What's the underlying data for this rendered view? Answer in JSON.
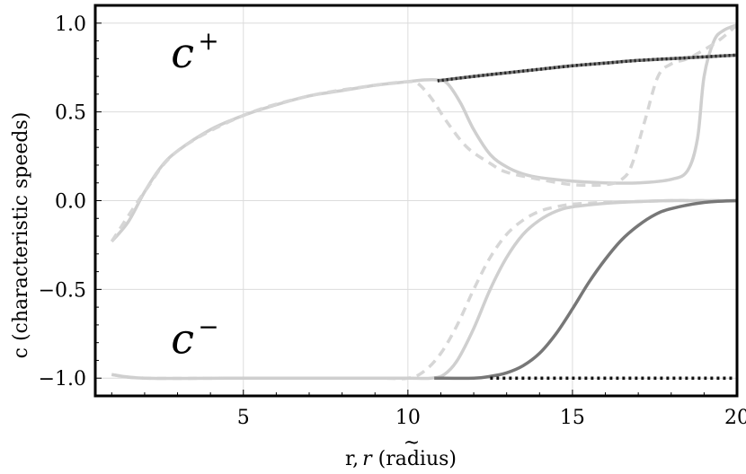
{
  "chart_data": {
    "type": "line",
    "title": "",
    "xlabel_main": "r,",
    "xlabel_var": "r",
    "xlabel_tilde": "~",
    "xlabel_unit": " (radius)",
    "ylabel": "c (characteristic speeds)",
    "xlim": [
      0.5,
      20
    ],
    "ylim": [
      -1.1,
      1.1
    ],
    "xticks": [
      5,
      10,
      15,
      20
    ],
    "xtick_labels": [
      "5",
      "10",
      "15",
      "20"
    ],
    "yticks": [
      1.0,
      0.5,
      0.0,
      -0.5,
      -1.0
    ],
    "ytick_labels": [
      "1.0",
      "0.5",
      "0.0",
      "−0.5",
      "−1.0"
    ],
    "grid": true,
    "annotations": [
      {
        "text": "c",
        "sup": "+",
        "x": 2.8,
        "y": 0.75
      },
      {
        "text": "c",
        "sup": "−",
        "x": 2.8,
        "y": -0.86
      }
    ],
    "series": [
      {
        "color": "#cfcfcf",
        "dash": "",
        "x": [
          1,
          1.5,
          2,
          2.5,
          3,
          4,
          5,
          6,
          7,
          8,
          9,
          10,
          10.5,
          10.9,
          11.2,
          11.6,
          12,
          12.5,
          13,
          13.5,
          14,
          15,
          16,
          17,
          18,
          18.5,
          18.8,
          19,
          19.3,
          19.6,
          20
        ],
        "y": [
          -0.23,
          -0.12,
          0.05,
          0.19,
          0.28,
          0.4,
          0.48,
          0.54,
          0.59,
          0.62,
          0.65,
          0.67,
          0.68,
          0.68,
          0.66,
          0.55,
          0.4,
          0.26,
          0.19,
          0.15,
          0.13,
          0.11,
          0.1,
          0.1,
          0.12,
          0.17,
          0.35,
          0.7,
          0.9,
          0.96,
          0.99
        ]
      },
      {
        "color": "#d6d6d6",
        "dash": "10,7",
        "x": [
          1,
          2,
          3,
          5,
          7,
          9,
          10,
          10.3,
          10.7,
          11.2,
          11.8,
          12.5,
          13,
          14,
          15,
          16,
          16.5,
          16.8,
          17.2,
          17.6,
          18,
          18.5,
          19,
          19.5,
          20
        ],
        "y": [
          -0.23,
          0.05,
          0.28,
          0.48,
          0.59,
          0.65,
          0.67,
          0.66,
          0.58,
          0.44,
          0.3,
          0.21,
          0.16,
          0.12,
          0.09,
          0.09,
          0.12,
          0.2,
          0.45,
          0.7,
          0.77,
          0.8,
          0.85,
          0.91,
          0.99
        ]
      },
      {
        "color": "#777777",
        "dash": "",
        "x": [
          10.9,
          12,
          13,
          14,
          15,
          16,
          17,
          18,
          19,
          20
        ],
        "y": [
          0.675,
          0.7,
          0.72,
          0.74,
          0.76,
          0.775,
          0.79,
          0.8,
          0.81,
          0.82
        ]
      },
      {
        "color": "#222222",
        "dash": "2,3",
        "x": [
          10.9,
          12,
          13,
          14,
          15,
          16,
          17,
          18,
          19,
          20
        ],
        "y": [
          0.675,
          0.7,
          0.72,
          0.74,
          0.76,
          0.775,
          0.79,
          0.8,
          0.81,
          0.82
        ]
      },
      {
        "color": "#d6d6d6",
        "dash": "10,7",
        "x": [
          1,
          2,
          5,
          9,
          10,
          10.5,
          11,
          11.5,
          12,
          12.5,
          13,
          13.5,
          14,
          14.5,
          15,
          16,
          17,
          18,
          19,
          20
        ],
        "y": [
          -0.98,
          -1.0,
          -1.0,
          -1.0,
          -1.0,
          -0.96,
          -0.86,
          -0.7,
          -0.5,
          -0.32,
          -0.19,
          -0.11,
          -0.06,
          -0.035,
          -0.02,
          -0.01,
          -0.005,
          0.0,
          0.0,
          0.0
        ]
      },
      {
        "color": "#cfcfcf",
        "dash": "",
        "x": [
          1,
          2,
          5,
          9,
          10,
          10.7,
          11.1,
          11.5,
          12,
          12.5,
          13,
          13.5,
          14,
          14.5,
          15,
          16,
          17,
          18,
          19,
          20
        ],
        "y": [
          -0.98,
          -1.0,
          -1.0,
          -1.0,
          -1.0,
          -1.0,
          -0.98,
          -0.9,
          -0.72,
          -0.5,
          -0.32,
          -0.19,
          -0.11,
          -0.06,
          -0.035,
          -0.015,
          -0.005,
          0.0,
          0.0,
          0.0
        ]
      },
      {
        "color": "#777777",
        "dash": "",
        "x": [
          10.8,
          12,
          12.5,
          13,
          13.5,
          14,
          14.5,
          15,
          15.5,
          16,
          16.5,
          17,
          17.5,
          18,
          19,
          20
        ],
        "y": [
          -1.0,
          -1.0,
          -0.99,
          -0.97,
          -0.93,
          -0.86,
          -0.75,
          -0.61,
          -0.46,
          -0.33,
          -0.22,
          -0.14,
          -0.08,
          -0.045,
          -0.01,
          0.0
        ]
      },
      {
        "color": "#111111",
        "dash": "3,4",
        "x": [
          12.5,
          13,
          14,
          15,
          16,
          17,
          18,
          19,
          20
        ],
        "y": [
          -1.0,
          -1.0,
          -1.0,
          -1.0,
          -1.0,
          -1.0,
          -1.0,
          -1.0,
          -1.0
        ]
      }
    ]
  }
}
